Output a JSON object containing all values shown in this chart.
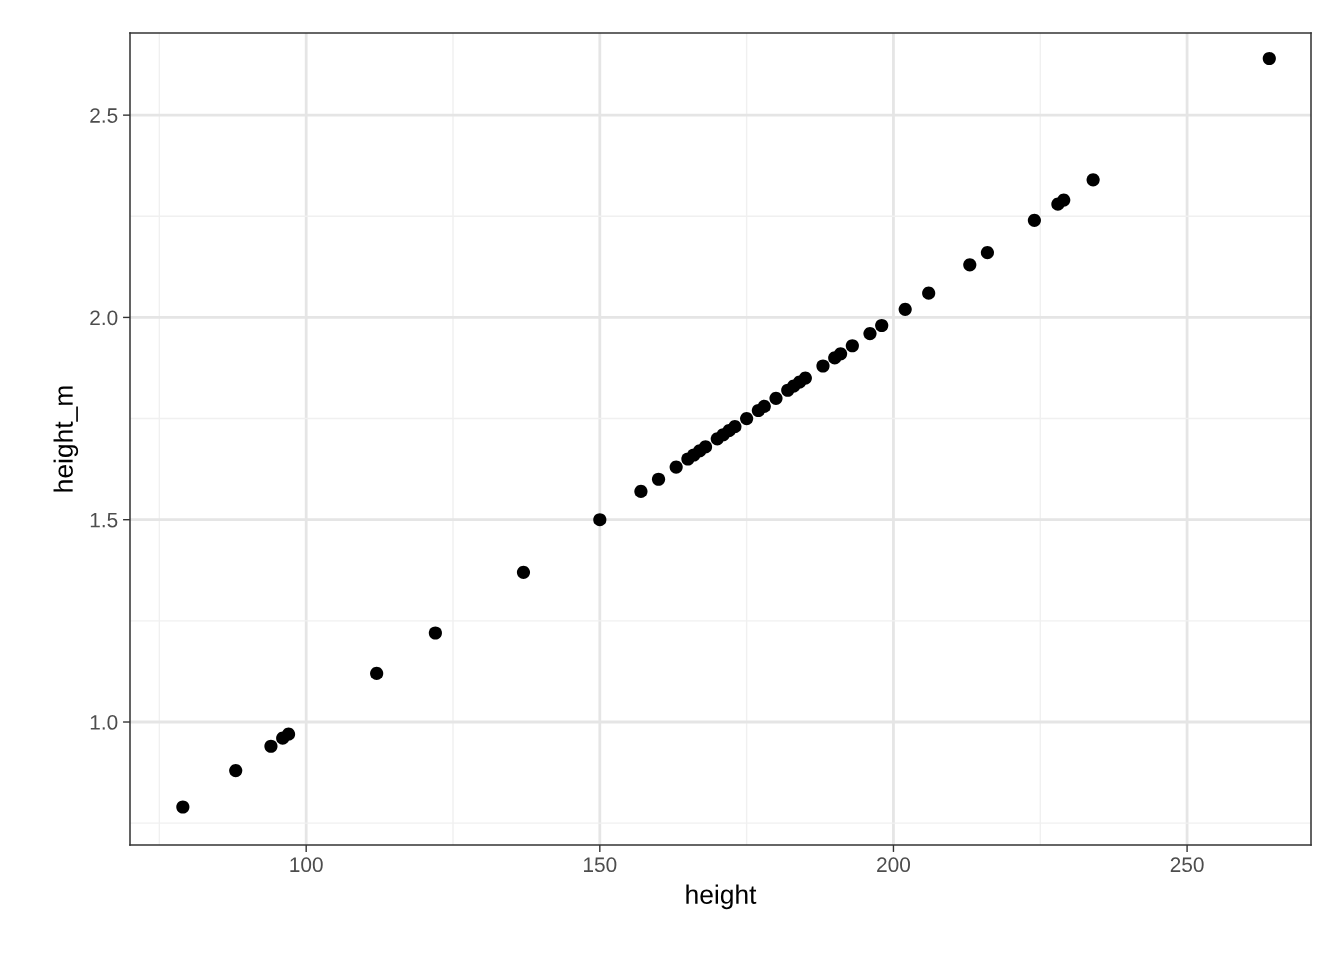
{
  "chart_data": {
    "type": "scatter",
    "xlabel": "height",
    "ylabel": "height_m",
    "x": [
      79,
      88,
      94,
      96,
      97,
      112,
      122,
      137,
      150,
      157,
      160,
      163,
      165,
      166,
      167,
      168,
      170,
      171,
      172,
      173,
      175,
      177,
      178,
      180,
      182,
      183,
      184,
      185,
      188,
      190,
      191,
      193,
      196,
      198,
      202,
      206,
      213,
      216,
      224,
      228,
      229,
      234,
      264
    ],
    "values": [
      0.79,
      0.88,
      0.94,
      0.96,
      0.97,
      1.12,
      1.22,
      1.37,
      1.5,
      1.57,
      1.6,
      1.63,
      1.65,
      1.66,
      1.67,
      1.68,
      1.7,
      1.71,
      1.72,
      1.73,
      1.75,
      1.77,
      1.78,
      1.8,
      1.82,
      1.83,
      1.84,
      1.85,
      1.88,
      1.9,
      1.91,
      1.93,
      1.96,
      1.98,
      2.02,
      2.06,
      2.13,
      2.16,
      2.24,
      2.28,
      2.29,
      2.34,
      2.64
    ],
    "color": "#000000",
    "marker": "circle",
    "xlim": [
      70,
      271.1
    ],
    "ylim": [
      0.696,
      2.703
    ],
    "xticks": [
      100,
      150,
      200,
      250
    ],
    "yticks": [
      {
        "value": 1.0,
        "label": "1.0"
      },
      {
        "value": 1.5,
        "label": "1.5"
      },
      {
        "value": 2.0,
        "label": "2.0"
      },
      {
        "value": 2.5,
        "label": "2.5"
      }
    ],
    "grid": true
  }
}
